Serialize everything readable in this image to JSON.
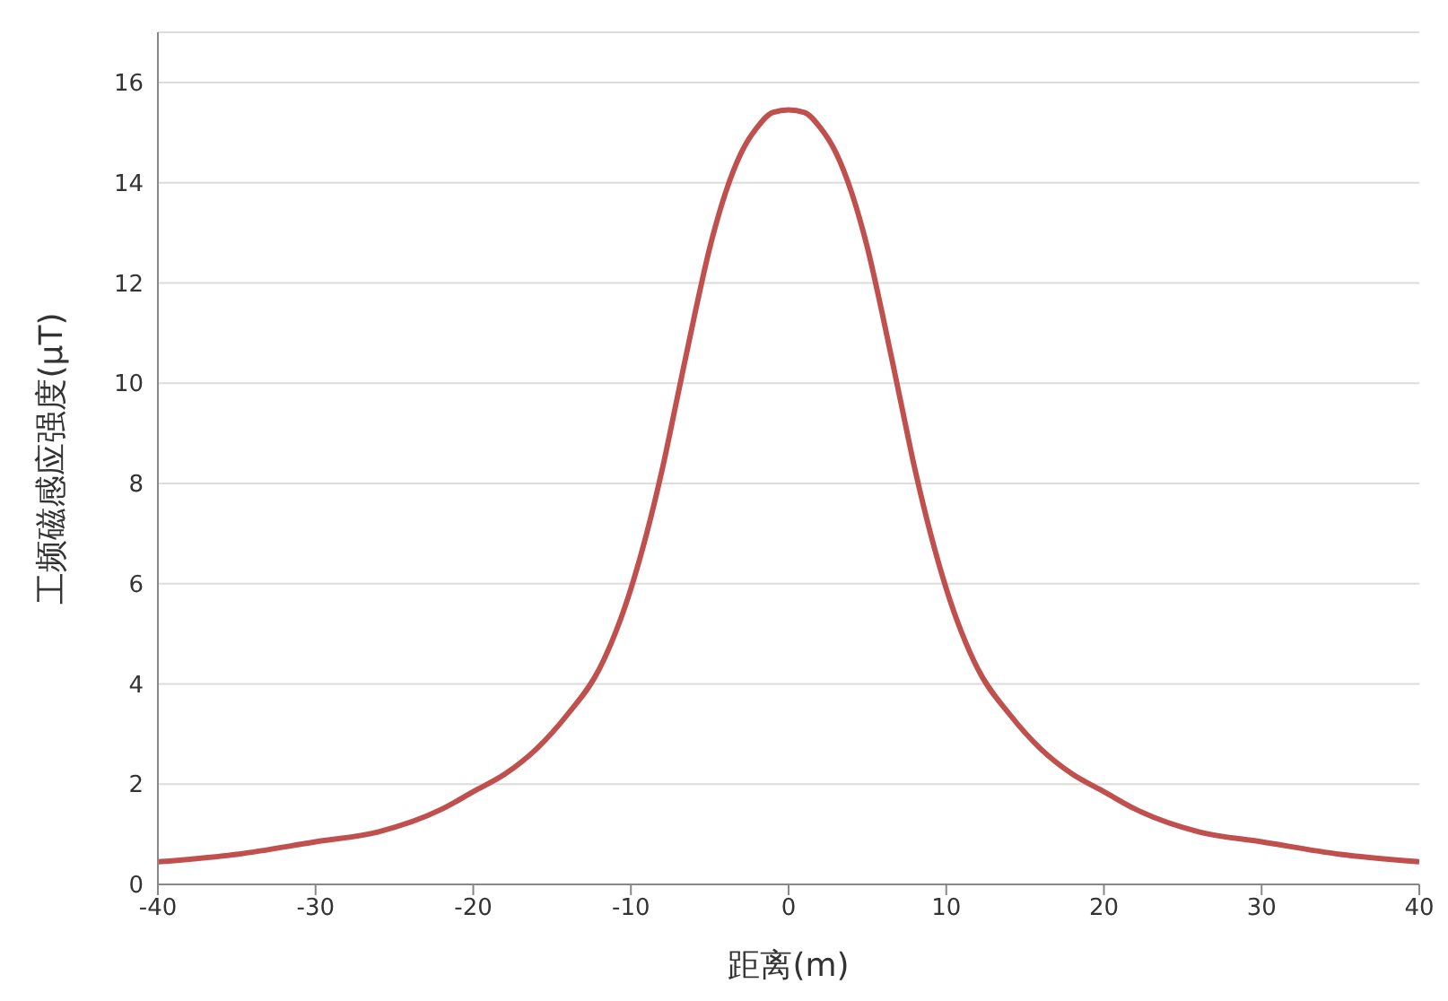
{
  "chart_data": {
    "type": "line",
    "xlabel": "距离(m)",
    "ylabel": "工频磁感应强度(μT)",
    "x": [
      -40,
      -35,
      -30,
      -26,
      -22,
      -20,
      -18,
      -16,
      -14,
      -12,
      -10,
      -9,
      -8,
      -7,
      -6,
      -5,
      -4,
      -3,
      -2,
      -1,
      0,
      1,
      2,
      3,
      4,
      5,
      6,
      7,
      8,
      9,
      10,
      12,
      14,
      16,
      18,
      20,
      22,
      26,
      30,
      35,
      40
    ],
    "series": [
      {
        "color": "#c0504d",
        "values": [
          0.45,
          0.6,
          0.85,
          1.05,
          1.5,
          1.85,
          2.2,
          2.7,
          3.4,
          4.3,
          5.9,
          7.0,
          8.3,
          9.8,
          11.3,
          12.7,
          13.8,
          14.6,
          15.1,
          15.4,
          15.45,
          15.4,
          15.1,
          14.6,
          13.8,
          12.7,
          11.3,
          9.8,
          8.3,
          7.0,
          5.9,
          4.3,
          3.4,
          2.7,
          2.2,
          1.85,
          1.5,
          1.05,
          0.85,
          0.6,
          0.45
        ]
      }
    ],
    "xlim": [
      -40,
      40
    ],
    "xticks": [
      -40,
      -30,
      -20,
      -10,
      0,
      10,
      20,
      30,
      40
    ],
    "ylim": [
      0,
      17
    ],
    "yticks": [
      0,
      2,
      4,
      6,
      8,
      10,
      12,
      14,
      16
    ],
    "grid": "y",
    "legend": false,
    "marker": "none",
    "line_style": "solid"
  }
}
